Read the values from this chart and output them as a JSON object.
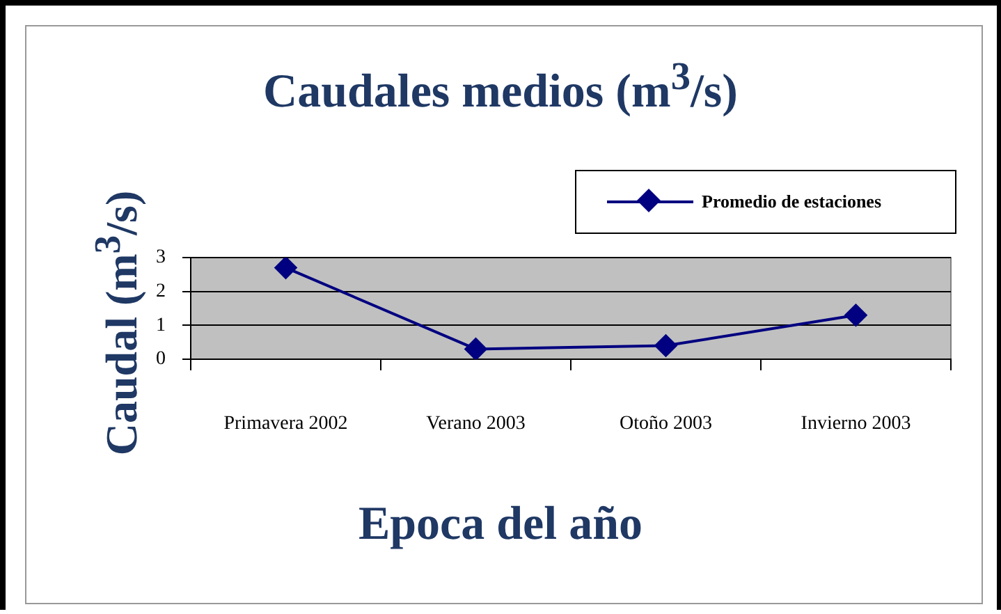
{
  "chart_data": {
    "type": "line",
    "title": "Caudales medios (m$^{3}$/s)",
    "xlabel": "Epoca del año",
    "ylabel": "Caudal (m$^{3}$/s)",
    "categories": [
      "Primavera 2002",
      "Verano 2003",
      "Otoño 2003",
      "Invierno 2003"
    ],
    "series": [
      {
        "name": "Promedio de estaciones",
        "color": "#000080",
        "values": [
          2.7,
          0.3,
          0.4,
          1.3
        ]
      }
    ],
    "ylim": [
      0,
      3
    ],
    "yticks": [
      0,
      1,
      2,
      3
    ],
    "grid": "y",
    "legend": "top right",
    "marker": "diamond",
    "line_style": "solid"
  }
}
